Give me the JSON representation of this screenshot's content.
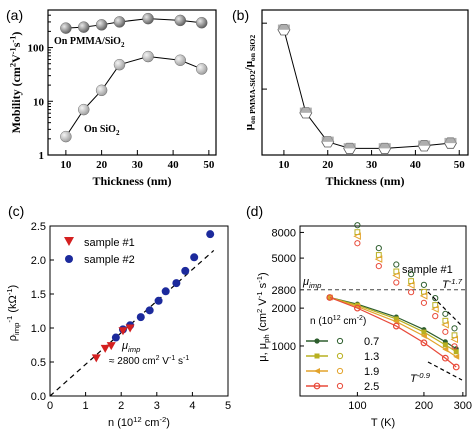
{
  "chart_data": [
    {
      "panel": "(a)",
      "type": "line",
      "xlabel": "Thickness (nm)",
      "ylabel": "Mobility (cm2V-1s-1)",
      "ylabel_parts": [
        "Mobility (cm",
        "2",
        "V",
        "-1",
        "s",
        "-1",
        ")"
      ],
      "xlim": [
        5,
        52
      ],
      "ylim": [
        1,
        500
      ],
      "yscale": "log",
      "xticks": [
        10,
        20,
        30,
        40,
        50
      ],
      "yticks": [
        1,
        10,
        100
      ],
      "series": [
        {
          "name": "On PMMA/SiO2",
          "label_parts": [
            "On PMMA/SiO",
            "2"
          ],
          "x": [
            10,
            15,
            20,
            25,
            33,
            42,
            48
          ],
          "y": [
            230,
            240,
            265,
            300,
            345,
            320,
            290
          ]
        },
        {
          "name": "On SiO2",
          "label_parts": [
            "On SiO",
            "2"
          ],
          "x": [
            10,
            15,
            20,
            25,
            33,
            42,
            48
          ],
          "y": [
            2.2,
            7,
            16,
            48,
            68,
            58,
            40
          ]
        }
      ]
    },
    {
      "panel": "(b)",
      "type": "line",
      "xlabel": "Thickness (nm)",
      "ylabel": "μon PMMA-SiO2/μon SiO2",
      "ylabel_parts": [
        "μ",
        "on PMMA-SiO",
        "2",
        "/μ",
        "on SiO",
        "2"
      ],
      "xlim": [
        5,
        52
      ],
      "ylim": [
        0,
        110
      ],
      "xticks": [
        10,
        20,
        30,
        40,
        50
      ],
      "yticks": [
        0,
        50,
        100
      ],
      "series": [
        {
          "x": [
            10,
            15,
            20,
            25,
            33,
            42,
            48
          ],
          "y": [
            95,
            32,
            10,
            5,
            5,
            7,
            9
          ]
        }
      ]
    },
    {
      "panel": "(c)",
      "type": "scatter",
      "xlabel": "n (1012 cm-2)",
      "ylabel": "ρimp-1 (kΩ-1)",
      "xlim": [
        0,
        5
      ],
      "ylim": [
        0,
        2.5
      ],
      "xticks": [
        0,
        1,
        2,
        3,
        4,
        5
      ],
      "yticks": [
        0.0,
        0.5,
        1.0,
        1.5,
        2.0,
        2.5
      ],
      "annotation": {
        "line1": "μimp",
        "line2": "≈ 2800 cm2 V-1 s-1"
      },
      "fit_line": {
        "x": [
          0,
          4.6
        ],
        "y": [
          0,
          2.14
        ]
      },
      "series": [
        {
          "name": "sample #1",
          "marker": "triangle",
          "color": "#d42020",
          "x": [
            1.3,
            1.55,
            1.72,
            2.05,
            2.25
          ],
          "y": [
            0.56,
            0.7,
            0.74,
            0.96,
            1.0
          ]
        },
        {
          "name": "sample #2",
          "marker": "circle",
          "color": "#1c2a9c",
          "x": [
            1.85,
            2.05,
            2.25,
            2.55,
            2.8,
            3.05,
            3.25,
            3.55,
            3.8,
            4.05,
            4.5
          ],
          "y": [
            0.86,
            0.98,
            1.04,
            1.16,
            1.26,
            1.4,
            1.54,
            1.66,
            1.84,
            2.04,
            2.38
          ]
        }
      ]
    },
    {
      "panel": "(d)",
      "type": "line",
      "xlabel": "T (K)",
      "ylabel": "μ, μph (cm2 V-1 s-1)",
      "xscale": "log",
      "yscale": "log",
      "xlim": [
        55,
        310
      ],
      "ylim": [
        400,
        9000
      ],
      "xticks": [
        100,
        200,
        300
      ],
      "yticks": [
        8000,
        5000,
        2800,
        2000,
        1000
      ],
      "annotation_sample": "sample #1",
      "hline": {
        "y": 2800,
        "label": "μimp"
      },
      "slope_labels": [
        "T-1.7",
        "T-0.9"
      ],
      "legend_title": "n (1012 cm-2)",
      "series": [
        {
          "name": "0.7",
          "color": "#2e5e2e",
          "x": [
            75,
            100,
            150,
            200,
            250,
            280
          ],
          "y": [
            2430,
            2150,
            1700,
            1350,
            1080,
            950
          ]
        },
        {
          "name": "1.3",
          "color": "#b8b020",
          "x": [
            75,
            100,
            150,
            200,
            250,
            280
          ],
          "y": [
            2430,
            2110,
            1640,
            1290,
            1020,
            900
          ]
        },
        {
          "name": "1.9",
          "color": "#e3a32b",
          "x": [
            75,
            100,
            150,
            200,
            250,
            280
          ],
          "y": [
            2430,
            2060,
            1560,
            1200,
            940,
            820
          ]
        },
        {
          "name": "2.5",
          "color": "#e84a3a",
          "x": [
            75,
            100,
            150,
            200,
            250,
            280
          ],
          "y": [
            2430,
            2000,
            1440,
            1060,
            800,
            680
          ]
        }
      ],
      "open_markers": {
        "x": [
          100,
          125,
          150,
          175,
          200,
          225,
          250,
          275
        ],
        "y": [
          7600,
          5000,
          3700,
          3100,
          2550,
          2000,
          1500,
          1150
        ]
      }
    }
  ]
}
